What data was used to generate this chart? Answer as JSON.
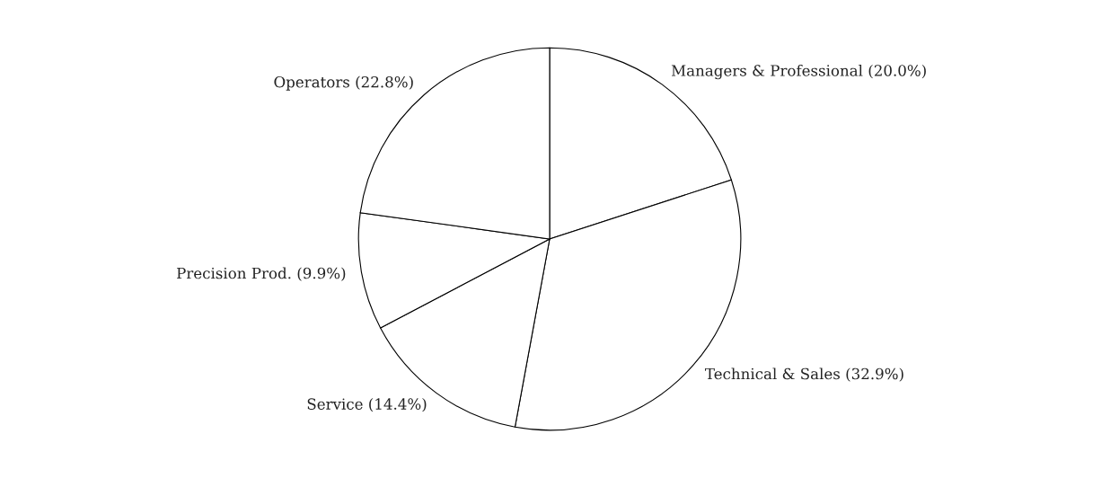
{
  "chart_data": {
    "type": "pie",
    "categories": [
      "Managers & Professional (20.0%)",
      "Technical & Sales (32.9%)",
      "Service (14.4%)",
      "Precision Prod. (9.9%)",
      "Operators (22.8%)"
    ],
    "values": [
      20.0,
      32.9,
      14.4,
      9.9,
      22.8
    ],
    "colors": [
      "#ffffff",
      "#ffffff",
      "#ffffff",
      "#ffffff",
      "#ffffff"
    ],
    "legend": false
  }
}
